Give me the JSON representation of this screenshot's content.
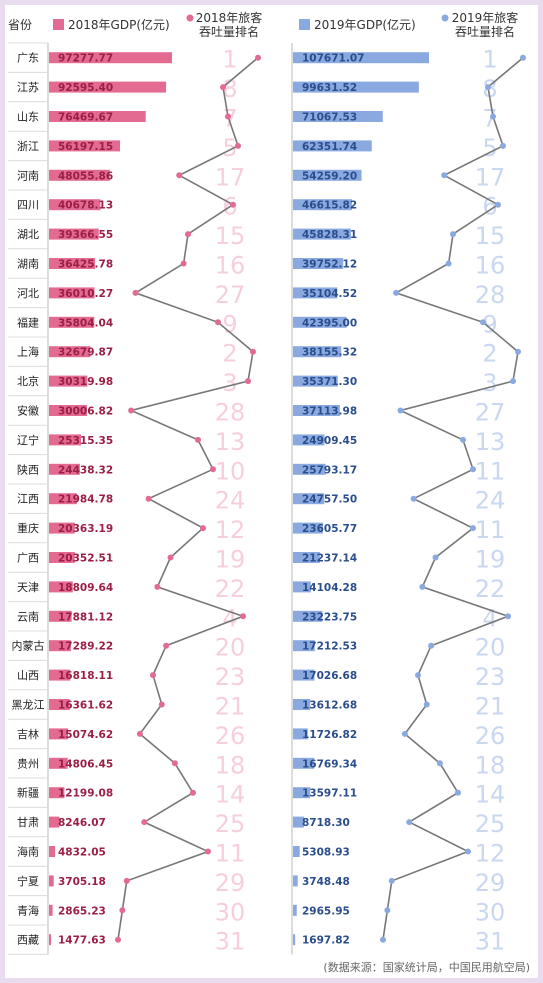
{
  "header": {
    "province": "省份",
    "gdp2018_legend": "2018年GDP(亿元)",
    "rank2018_legend_line1": "2018年旅客",
    "rank2018_legend_line2": "吞吐量排名",
    "gdp2019_legend": "2019年GDP(亿元)",
    "rank2019_legend_line1": "2019年旅客",
    "rank2019_legend_line2": "吞吐量排名"
  },
  "source": "(数据来源：国家统计局，中国民用航空局)",
  "colors": {
    "pink": "#e36a90",
    "pink_text": "#9b1f45",
    "pink_rank_text": "#f7cfdc",
    "blue": "#8aa9e0",
    "blue_text": "#2a4d8c",
    "blue_rank_text": "#c9d7f0",
    "line": "#777777",
    "divider": "#b8b8b8"
  },
  "chart_data": {
    "type": "bar",
    "categories": [
      "广东",
      "江苏",
      "山东",
      "浙江",
      "河南",
      "四川",
      "湖北",
      "湖南",
      "河北",
      "福建",
      "上海",
      "北京",
      "安徽",
      "辽宁",
      "陕西",
      "江西",
      "重庆",
      "广西",
      "天津",
      "云南",
      "内蒙古",
      "山西",
      "黑龙江",
      "吉林",
      "贵州",
      "新疆",
      "甘肃",
      "海南",
      "宁夏",
      "青海",
      "西藏"
    ],
    "gdp2018_labels": [
      "97277.77",
      "92595.40",
      "76469.67",
      "56197.15",
      "48055.86",
      "40678.13",
      "39366.55",
      "36425.78",
      "36010.27",
      "35804.04",
      "32679.87",
      "30319.98",
      "30006.82",
      "25315.35",
      "24438.32",
      "21984.78",
      "20363.19",
      "20352.51",
      "18809.64",
      "17881.12",
      "17289.22",
      "16818.11",
      "16361.62",
      "15074.62",
      "14806.45",
      "12199.08",
      "8246.07",
      "4832.05",
      "3705.18",
      "2865.23",
      "1477.63"
    ],
    "gdp2019_labels": [
      "107671.07",
      "99631.52",
      "71067.53",
      "62351.74",
      "54259.20",
      "46615.82",
      "45828.31",
      "39752.12",
      "35104.52",
      "42395.00",
      "38155.32",
      "35371.30",
      "37113.98",
      "24909.45",
      "25793.17",
      "24757.50",
      "23605.77",
      "21237.14",
      "14104.28",
      "23223.75",
      "17212.53",
      "17026.68",
      "13612.68",
      "11726.82",
      "16769.34",
      "13597.11",
      "8718.30",
      "5308.93",
      "3748.48",
      "2965.95",
      "1697.82"
    ],
    "series": [
      {
        "name": "2018年GDP(亿元)",
        "values": [
          97277.77,
          92595.4,
          76469.67,
          56197.15,
          48055.86,
          40678.13,
          39366.55,
          36425.78,
          36010.27,
          35804.04,
          32679.87,
          30319.98,
          30006.82,
          25315.35,
          24438.32,
          21984.78,
          20363.19,
          20352.51,
          18809.64,
          17881.12,
          17289.22,
          16818.11,
          16361.62,
          15074.62,
          14806.45,
          12199.08,
          8246.07,
          4832.05,
          3705.18,
          2865.23,
          1477.63
        ]
      },
      {
        "name": "2018年旅客吞吐量排名",
        "values": [
          1,
          8,
          7,
          5,
          17,
          6,
          15,
          16,
          27,
          9,
          2,
          3,
          28,
          13,
          10,
          24,
          12,
          19,
          22,
          4,
          20,
          23,
          21,
          26,
          18,
          14,
          25,
          11,
          29,
          30,
          31
        ]
      },
      {
        "name": "2019年GDP(亿元)",
        "values": [
          107671.07,
          99631.52,
          71067.53,
          62351.74,
          54259.2,
          46615.82,
          45828.31,
          39752.12,
          35104.52,
          42395.0,
          38155.32,
          35371.3,
          37113.98,
          24909.45,
          25793.17,
          24757.5,
          23605.77,
          21237.14,
          14104.28,
          23223.75,
          17212.53,
          17026.68,
          13612.68,
          11726.82,
          16769.34,
          13597.11,
          8718.3,
          5308.93,
          3748.48,
          2965.95,
          1697.82
        ]
      },
      {
        "name": "2019年旅客吞吐量排名",
        "values": [
          1,
          8,
          7,
          5,
          17,
          6,
          15,
          16,
          28,
          9,
          2,
          3,
          27,
          13,
          11,
          24,
          11,
          19,
          22,
          4,
          20,
          23,
          21,
          26,
          18,
          14,
          25,
          12,
          29,
          30,
          31
        ]
      }
    ]
  }
}
